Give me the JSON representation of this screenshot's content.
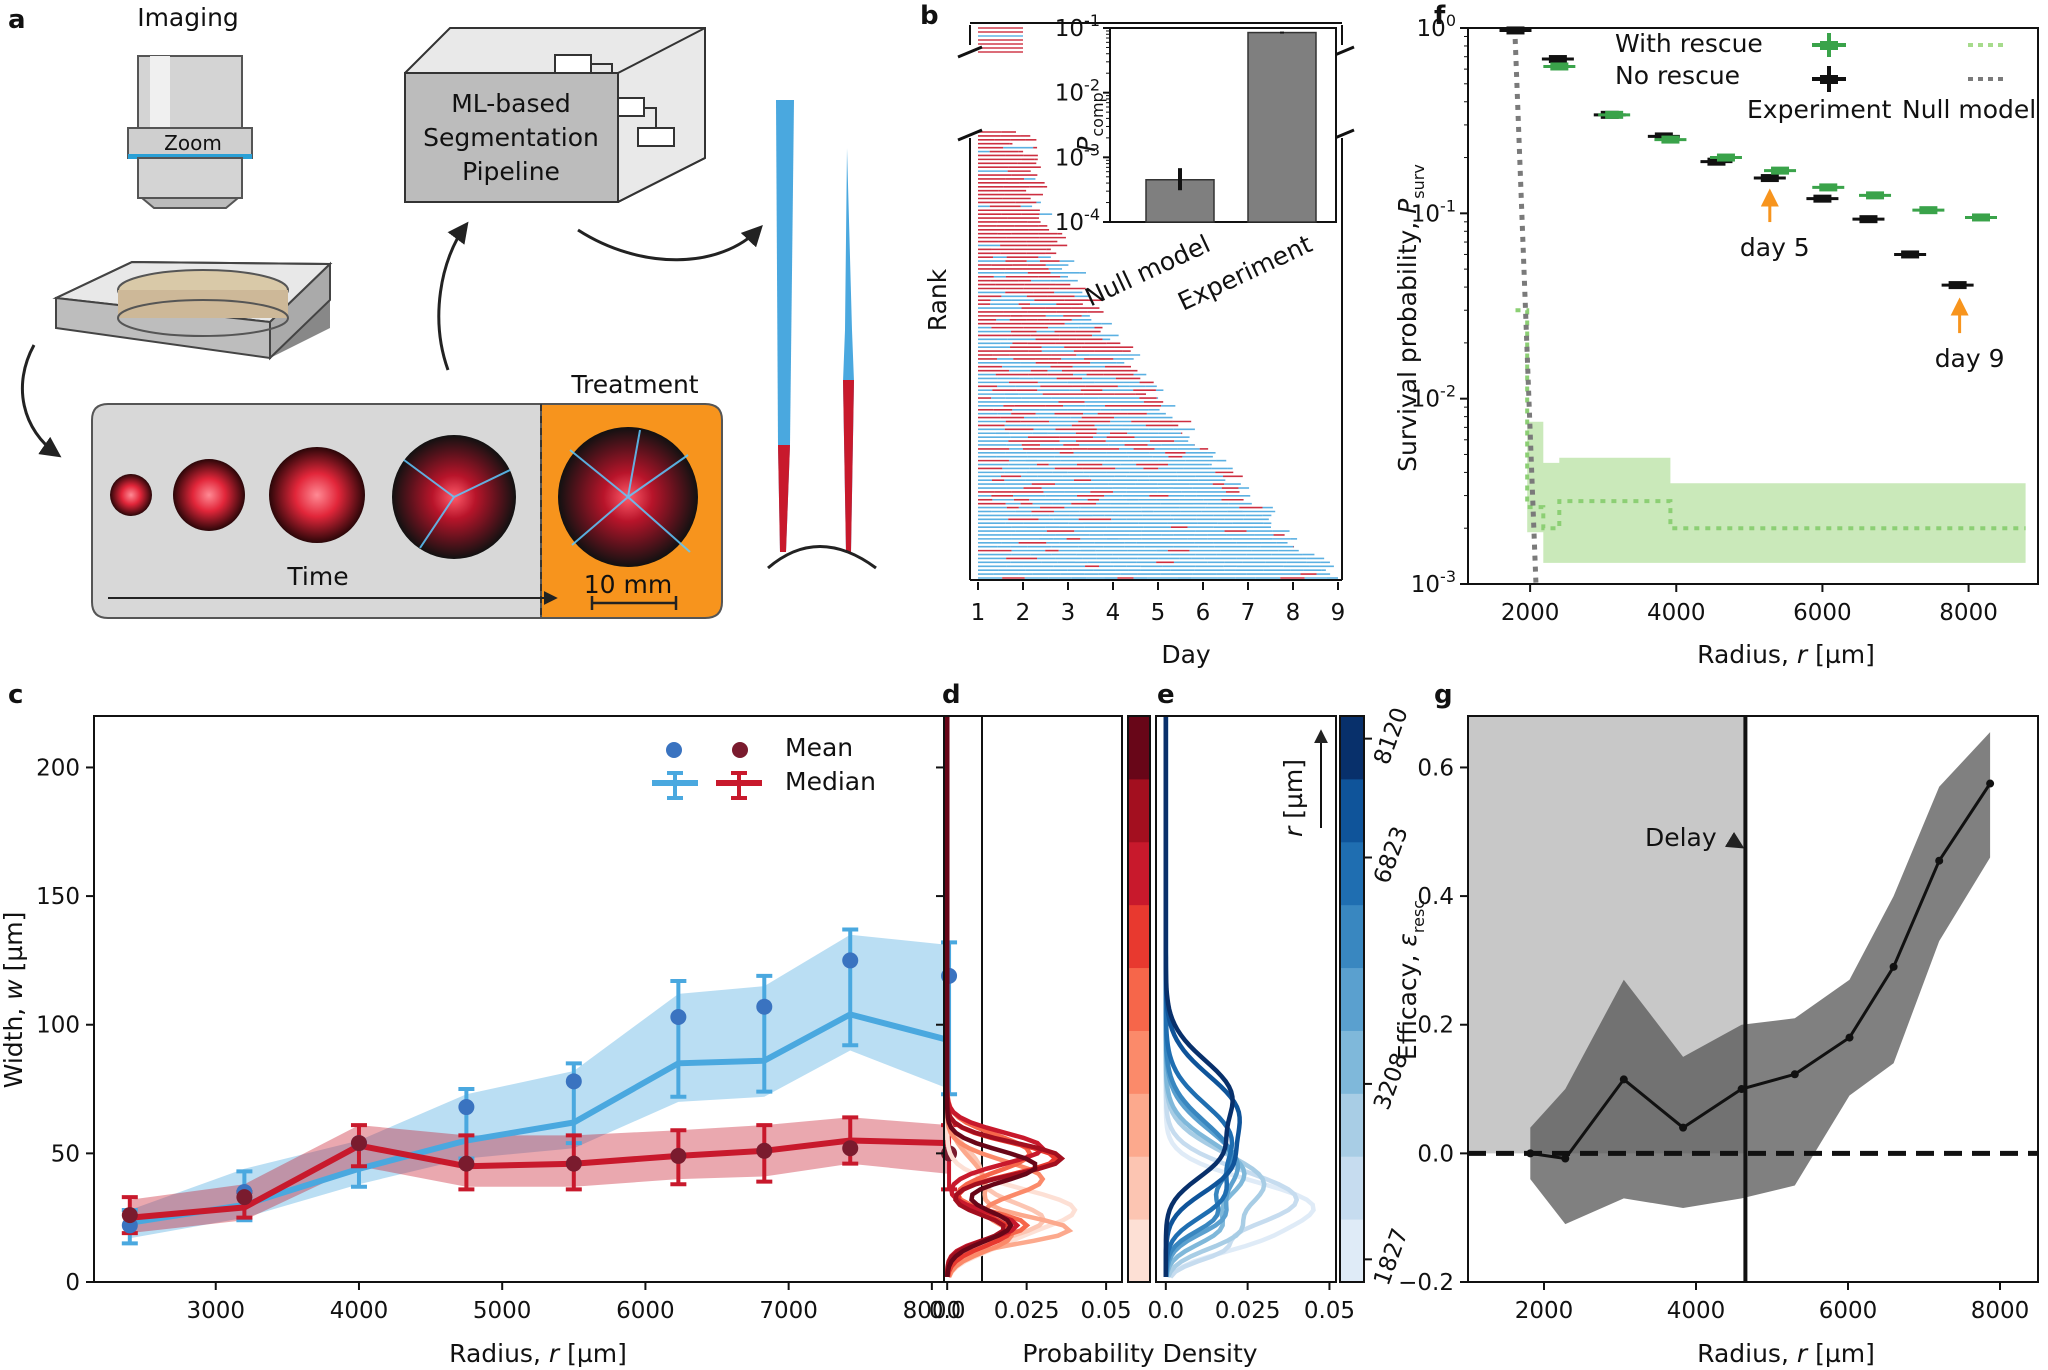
{
  "panel_labels": {
    "a": "a",
    "b": "b",
    "c": "c",
    "d": "d",
    "e": "e",
    "f": "f",
    "g": "g"
  },
  "schematic": {
    "imaging": "Imaging",
    "zoom": "Zoom",
    "pipeline_line1": "ML-based",
    "pipeline_line2": "Segmentation",
    "pipeline_line3": "Pipeline",
    "time": "Time",
    "treatment": "Treatment",
    "scale": "10 mm"
  },
  "colors": {
    "red": "#c8192c",
    "blue": "#4aa8df",
    "green": "#3aa34a",
    "lightgreen": "#a6db8c",
    "orange": "#f7941d",
    "gray": "#7a7a7a"
  },
  "chart_data": [
    {
      "id": "b",
      "type": "table",
      "title": "",
      "xlabel": "Day",
      "ylabel": "Rank",
      "x": [
        1,
        2,
        3,
        4,
        5,
        6,
        7,
        8,
        9
      ],
      "xlim": [
        1,
        9
      ],
      "inset": {
        "type": "bar",
        "categories": [
          "Null model",
          "Experiment"
        ],
        "values": [
          0.00045,
          0.085
        ],
        "errors_low": [
          0.00031,
          0.082
        ],
        "errors_high": [
          0.00068,
          0.088
        ],
        "ylabel": "P",
        "ylabel_sub": "comp",
        "yscale": "log",
        "ylim": [
          0.0001,
          0.1
        ],
        "yticks": [
          {
            "v": 0.0001,
            "b": "10",
            "e": "-4"
          },
          {
            "v": 0.001,
            "b": "10",
            "e": "-3"
          },
          {
            "v": 0.01,
            "b": "10",
            "e": "-2"
          },
          {
            "v": 0.1,
            "b": "10",
            "e": "-1"
          }
        ]
      }
    },
    {
      "id": "c",
      "type": "line",
      "xlabel_pre": "Radius, ",
      "xlabel_var": "r",
      "xlabel_post": " [µm]",
      "ylabel_pre": "Width, ",
      "ylabel_var": "w",
      "ylabel_post": " [µm]",
      "xlim": [
        2150,
        8350
      ],
      "ylim": [
        0,
        220
      ],
      "xticks": [
        3000,
        4000,
        5000,
        6000,
        7000,
        8000
      ],
      "yticks": [
        0,
        50,
        100,
        150,
        200
      ],
      "x": [
        2400,
        3200,
        4000,
        4750,
        5500,
        6230,
        6830,
        7430,
        8120
      ],
      "legend": {
        "mean": "Mean",
        "median": "Median"
      },
      "series": [
        {
          "name": "blue",
          "mean": [
            22,
            35,
            54,
            68,
            78,
            103,
            107,
            125,
            119
          ],
          "median": [
            23,
            30,
            44,
            55,
            62,
            85,
            86,
            104,
            94
          ],
          "median_err_low": [
            15,
            24,
            37,
            48,
            54,
            72,
            74,
            92,
            73
          ],
          "median_err_high": [
            28,
            43,
            53,
            75,
            85,
            117,
            119,
            137,
            132
          ],
          "band_low": [
            17,
            25,
            38,
            48,
            52,
            70,
            72,
            90,
            75
          ],
          "band_high": [
            28,
            44,
            55,
            73,
            82,
            112,
            115,
            135,
            131
          ]
        },
        {
          "name": "red",
          "mean": [
            26,
            33,
            54,
            46,
            46,
            49,
            51,
            52,
            50
          ],
          "median": [
            25,
            29,
            53,
            45,
            46,
            49,
            51,
            55,
            54
          ],
          "median_err_low": [
            19,
            25,
            45,
            36,
            36,
            38,
            39,
            46,
            36
          ],
          "median_err_high": [
            33,
            35,
            61,
            57,
            57,
            59,
            61,
            64,
            61
          ],
          "band_low": [
            19,
            24,
            45,
            37,
            37,
            40,
            41,
            46,
            42
          ],
          "band_high": [
            32,
            38,
            61,
            57,
            57,
            59,
            61,
            64,
            61
          ]
        }
      ]
    },
    {
      "id": "d",
      "type": "line",
      "xlabel": "Probability Density",
      "xlim": [
        -0.001,
        0.055
      ],
      "xticks": [
        {
          "v": 0.0,
          "t": "0.0"
        },
        {
          "v": 0.025,
          "t": "0.025"
        },
        {
          "v": 0.05,
          "t": "0.05"
        }
      ],
      "ylim": [
        0,
        220
      ],
      "n_curves": 9,
      "palette": [
        "#fde0d5",
        "#fcc5b2",
        "#fca98d",
        "#fb8a6a",
        "#f6664a",
        "#e8392f",
        "#c8192c",
        "#a30f1f",
        "#680618"
      ]
    },
    {
      "id": "e",
      "type": "line",
      "xlim": [
        -0.003,
        0.052
      ],
      "xticks": [
        {
          "v": 0.0,
          "t": "0.0"
        },
        {
          "v": 0.025,
          "t": "0.025"
        },
        {
          "v": 0.05,
          "t": "0.05"
        }
      ],
      "n_curves": 9,
      "palette": [
        "#dfebf7",
        "#c6dcef",
        "#a8cde5",
        "#7fb8da",
        "#5aa0cf",
        "#3987c0",
        "#1f6eb1",
        "#0f549a",
        "#08306b"
      ],
      "colorbar": {
        "label_var": "r",
        "label_unit": " [µm]",
        "ticks": [
          1827,
          3208,
          6823,
          8120
        ]
      }
    },
    {
      "id": "f",
      "type": "scatter",
      "xlabel_pre": "Radius, ",
      "xlabel_var": "r",
      "xlabel_post": " [µm]",
      "ylabel_pre": "Survival probability, ",
      "ylabel_var": "P",
      "ylabel_sub": "surv",
      "yscale": "log",
      "xlim": [
        1150,
        8950
      ],
      "ylim": [
        0.001,
        1.0
      ],
      "xticks": [
        2000,
        4000,
        6000,
        8000
      ],
      "yticks": [
        {
          "v": 1.0,
          "b": "10",
          "e": "0"
        },
        {
          "v": 0.1,
          "b": "10",
          "e": "-1"
        },
        {
          "v": 0.01,
          "b": "10",
          "e": "-2"
        },
        {
          "v": 0.001,
          "b": "10",
          "e": "-3"
        }
      ],
      "legend": {
        "with_rescue": "With rescue",
        "no_rescue": "No rescue",
        "experiment": "Experiment",
        "null_model": "Null model"
      },
      "annotations": [
        "day 5",
        "day 9"
      ],
      "series": [
        {
          "name": "No rescue",
          "x": [
            1800,
            2380,
            3090,
            3830,
            4550,
            5280,
            6000,
            6630,
            7200,
            7850
          ],
          "y": [
            0.97,
            0.68,
            0.34,
            0.26,
            0.19,
            0.155,
            0.12,
            0.093,
            0.06,
            0.041
          ]
        },
        {
          "name": "With rescue",
          "x": [
            2400,
            3150,
            3920,
            4680,
            5420,
            6080,
            6720,
            7450,
            8170
          ],
          "y": [
            0.62,
            0.34,
            0.25,
            0.2,
            0.17,
            0.138,
            0.125,
            0.104,
            0.095
          ]
        }
      ],
      "null_no_rescue": {
        "x": [
          1790,
          2080
        ],
        "y": [
          1.0,
          0.001
        ]
      },
      "null_with_rescue": {
        "x": [
          1800,
          1960,
          1960,
          2180,
          2180,
          2400,
          2400,
          3920,
          3920,
          8780
        ],
        "y": [
          0.03,
          0.03,
          0.0026,
          0.0026,
          0.002,
          0.002,
          0.0028,
          0.0028,
          0.002,
          0.002
        ],
        "band_x": [
          1960,
          2180,
          2180,
          2400,
          2400,
          3920,
          3920,
          8780
        ],
        "band_low": [
          0.0019,
          0.0019,
          0.0013,
          0.0013,
          0.0013,
          0.0013,
          0.0013,
          0.0013
        ],
        "band_high": [
          0.0075,
          0.0075,
          0.0045,
          0.0045,
          0.0048,
          0.0048,
          0.0035,
          0.0035
        ]
      }
    },
    {
      "id": "g",
      "type": "line",
      "xlabel_pre": "Radius, ",
      "xlabel_var": "r",
      "xlabel_post": " [µm]",
      "ylabel_pre": "Efficacy, ",
      "ylabel_var": "ε",
      "ylabel_sub": "resc",
      "xlim": [
        1000,
        8500
      ],
      "ylim": [
        -0.2,
        0.68
      ],
      "xticks": [
        2000,
        4000,
        6000,
        8000
      ],
      "yticks": [
        {
          "v": -0.2,
          "t": "−0.2"
        },
        {
          "v": 0.0,
          "t": "0.0"
        },
        {
          "v": 0.2,
          "t": "0.2"
        },
        {
          "v": 0.4,
          "t": "0.4"
        },
        {
          "v": 0.6,
          "t": "0.6"
        }
      ],
      "delay_x": 4650,
      "annotation": "Delay",
      "x": [
        1820,
        2280,
        3050,
        3830,
        4600,
        5300,
        6020,
        6600,
        7200,
        7870
      ],
      "y": [
        0.0,
        -0.008,
        0.115,
        0.04,
        0.1,
        0.123,
        0.18,
        0.29,
        0.455,
        0.575
      ],
      "band_low": [
        -0.04,
        -0.11,
        -0.07,
        -0.085,
        -0.07,
        -0.05,
        0.09,
        0.14,
        0.33,
        0.46
      ],
      "band_high": [
        0.04,
        0.1,
        0.27,
        0.15,
        0.2,
        0.21,
        0.27,
        0.4,
        0.57,
        0.655
      ]
    }
  ]
}
